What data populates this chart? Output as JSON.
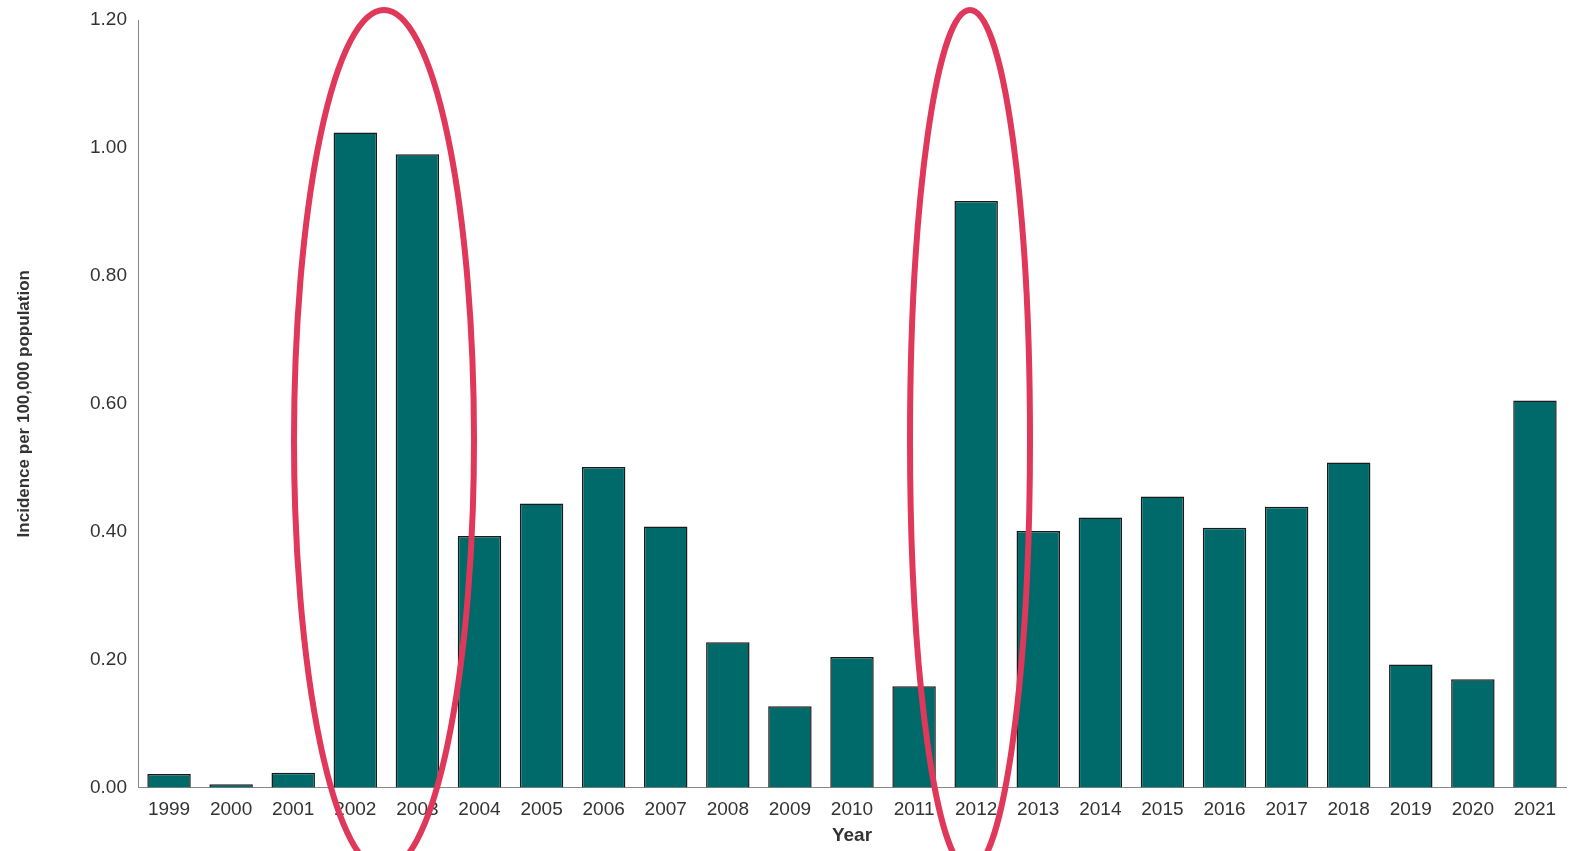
{
  "chart_data": {
    "type": "bar",
    "xlabel": "Year",
    "ylabel": "Incidence per 100,000 population",
    "categories": [
      "1999",
      "2000",
      "2001",
      "2002",
      "2003",
      "2004",
      "2005",
      "2006",
      "2007",
      "2008",
      "2009",
      "2010",
      "2011",
      "2012",
      "2013",
      "2014",
      "2015",
      "2016",
      "2017",
      "2018",
      "2019",
      "2020",
      "2021"
    ],
    "values": [
      0.021,
      0.005,
      0.023,
      1.024,
      0.99,
      0.393,
      0.444,
      0.501,
      0.408,
      0.227,
      0.127,
      0.204,
      0.158,
      0.917,
      0.401,
      0.422,
      0.455,
      0.406,
      0.439,
      0.508,
      0.192,
      0.169,
      0.605
    ],
    "color": "#006a6a",
    "ylim": [
      0,
      1.2
    ],
    "yticks": [
      {
        "value": 0,
        "label": "0.00"
      },
      {
        "value": 0.2,
        "label": "0.20"
      },
      {
        "value": 0.4,
        "label": "0.40"
      },
      {
        "value": 0.6,
        "label": "0.60"
      },
      {
        "value": 0.8,
        "label": "0.80"
      },
      {
        "value": 1,
        "label": "1.00"
      },
      {
        "value": 1.2,
        "label": "1.20"
      }
    ],
    "grid": false,
    "legend": false
  }
}
